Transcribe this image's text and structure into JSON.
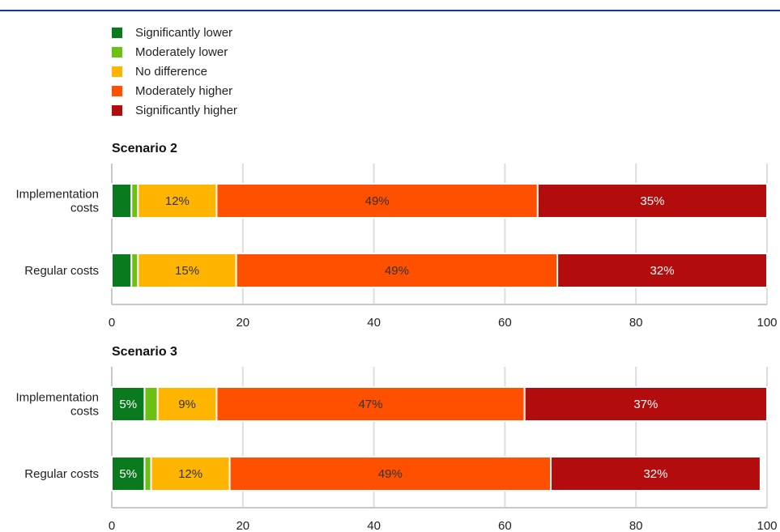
{
  "legend": [
    {
      "label": "Significantly lower",
      "color": "#0a7a1e"
    },
    {
      "label": "Moderately lower",
      "color": "#6cbf13"
    },
    {
      "label": "No difference",
      "color": "#ffb400"
    },
    {
      "label": "Moderately higher",
      "color": "#ff5000"
    },
    {
      "label": "Significantly higher",
      "color": "#b30c0c"
    }
  ],
  "chart_data": [
    {
      "type": "bar",
      "orientation": "horizontal",
      "stacked": true,
      "title": "Scenario 2",
      "categories": [
        [
          "Implementation",
          "costs"
        ],
        [
          "Regular costs"
        ]
      ],
      "xlim": [
        0,
        100
      ],
      "xticks": [
        0,
        20,
        40,
        60,
        80,
        100
      ],
      "grid": true,
      "series": [
        {
          "name": "Significantly lower",
          "values": [
            3,
            3
          ],
          "labels": [
            "",
            ""
          ]
        },
        {
          "name": "Moderately lower",
          "values": [
            1,
            1
          ],
          "labels": [
            "",
            ""
          ]
        },
        {
          "name": "No difference",
          "values": [
            12,
            15
          ],
          "labels": [
            "12%",
            "15%"
          ]
        },
        {
          "name": "Moderately higher",
          "values": [
            49,
            49
          ],
          "labels": [
            "49%",
            "49%"
          ]
        },
        {
          "name": "Significantly higher",
          "values": [
            35,
            32
          ],
          "labels": [
            "35%",
            "32%"
          ]
        }
      ]
    },
    {
      "type": "bar",
      "orientation": "horizontal",
      "stacked": true,
      "title": "Scenario 3",
      "categories": [
        [
          "Implementation",
          "costs"
        ],
        [
          "Regular costs"
        ]
      ],
      "xlim": [
        0,
        100
      ],
      "xticks": [
        0,
        20,
        40,
        60,
        80,
        100
      ],
      "grid": true,
      "series": [
        {
          "name": "Significantly lower",
          "values": [
            5,
            5
          ],
          "labels": [
            "5%",
            "5%"
          ]
        },
        {
          "name": "Moderately lower",
          "values": [
            2,
            1
          ],
          "labels": [
            "",
            ""
          ]
        },
        {
          "name": "No difference",
          "values": [
            9,
            12
          ],
          "labels": [
            "9%",
            "12%"
          ]
        },
        {
          "name": "Moderately higher",
          "values": [
            47,
            49
          ],
          "labels": [
            "47%",
            "49%"
          ]
        },
        {
          "name": "Significantly higher",
          "values": [
            37,
            32
          ],
          "labels": [
            "37%",
            "32%"
          ]
        }
      ]
    }
  ]
}
